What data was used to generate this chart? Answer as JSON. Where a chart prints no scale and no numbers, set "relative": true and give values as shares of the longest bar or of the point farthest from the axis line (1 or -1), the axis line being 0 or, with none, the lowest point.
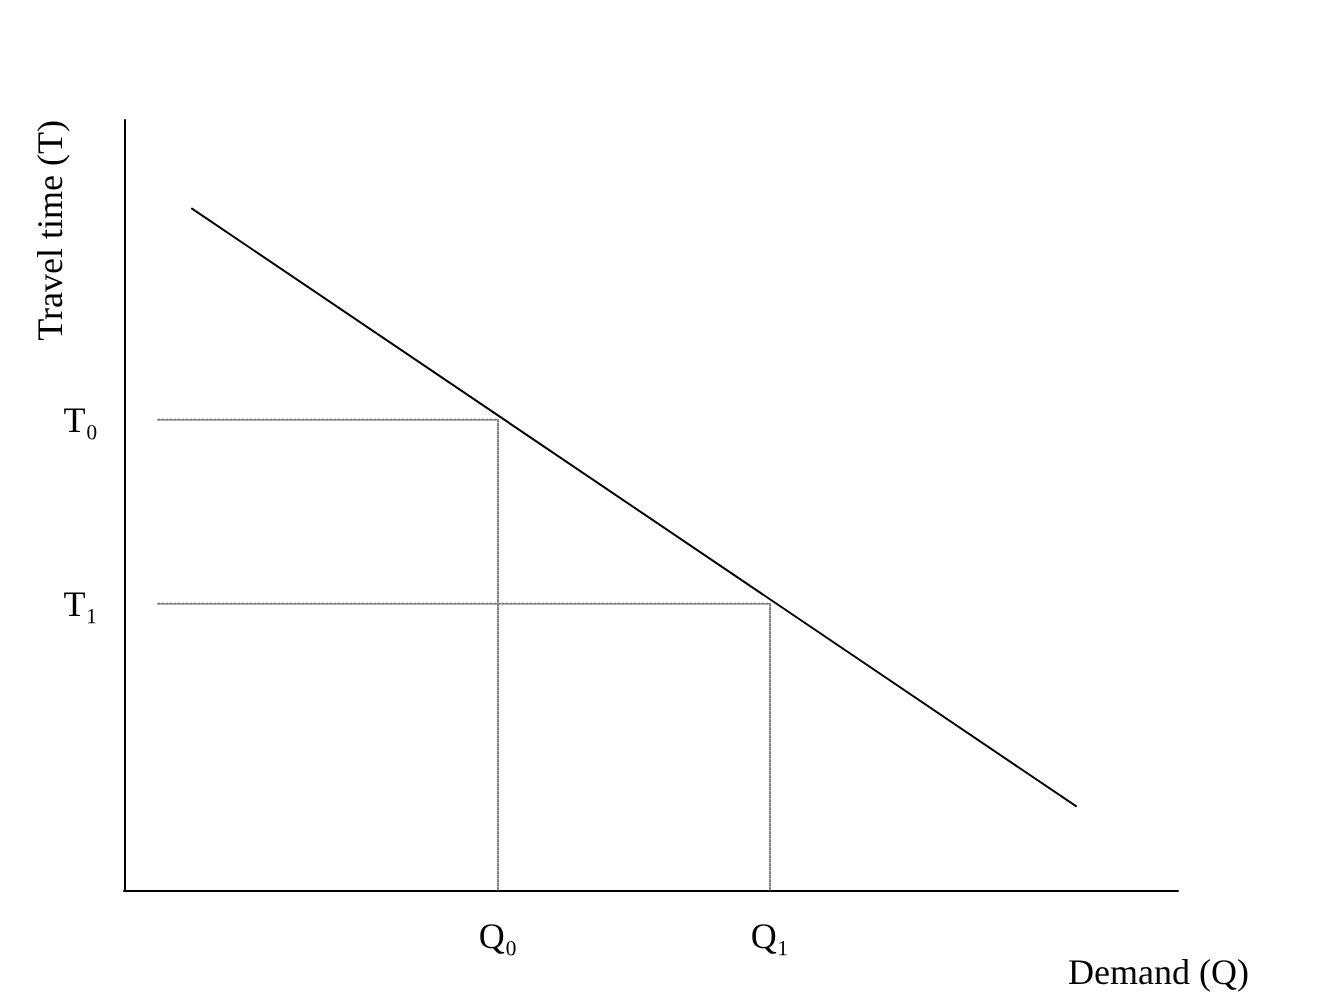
{
  "chart_data": {
    "type": "line",
    "xlabel": "Demand (Q)",
    "ylabel": "Travel time (T)",
    "relative": true,
    "categories": [
      null,
      null,
      null,
      null,
      null,
      null,
      null,
      null,
      null,
      null,
      null,
      "Q₀",
      null,
      null,
      null,
      null,
      null,
      null,
      null,
      "Q₁",
      null,
      null,
      null,
      null,
      null,
      null,
      null,
      null,
      null,
      null,
      null,
      null
    ],
    "grid": false,
    "marker": "none",
    "series": [
      {
        "color": "#000000",
        "line_style": "solid",
        "values": [
          null,
          null,
          1,
          null,
          null,
          null,
          null,
          null,
          null,
          null,
          null,
          null,
          null,
          null,
          null,
          null,
          null,
          null,
          null,
          null,
          null,
          null,
          null,
          null,
          null,
          null,
          null,
          null,
          0.123,
          null,
          null,
          null
        ]
      },
      {
        "name": "T₀",
        "color": "#808080",
        "line_style": "dotted",
        "values": [
          null,
          0.69,
          null,
          null,
          null,
          null,
          null,
          null,
          null,
          null,
          null,
          0.69,
          null,
          null,
          null,
          null,
          null,
          null,
          null,
          null,
          null,
          null,
          null,
          null,
          null,
          null,
          null,
          null,
          null,
          null,
          null,
          null
        ]
      },
      {
        "name": "T₁",
        "color": "#808080",
        "line_style": "dotted",
        "values": [
          null,
          0.42,
          null,
          null,
          null,
          null,
          null,
          null,
          null,
          null,
          null,
          null,
          null,
          null,
          null,
          null,
          null,
          null,
          null,
          0.42,
          null,
          null,
          null,
          null,
          null,
          null,
          null,
          null,
          null,
          null,
          null,
          null
        ]
      },
      {
        "color": "#808080",
        "line_style": "dotted",
        "x": [
          "Q₀",
          "Q₀"
        ],
        "values": [
          0.69,
          0
        ]
      },
      {
        "color": "#808080",
        "line_style": "dotted",
        "x": [
          "Q₁",
          "Q₁"
        ],
        "values": [
          0.42,
          0
        ]
      }
    ]
  }
}
